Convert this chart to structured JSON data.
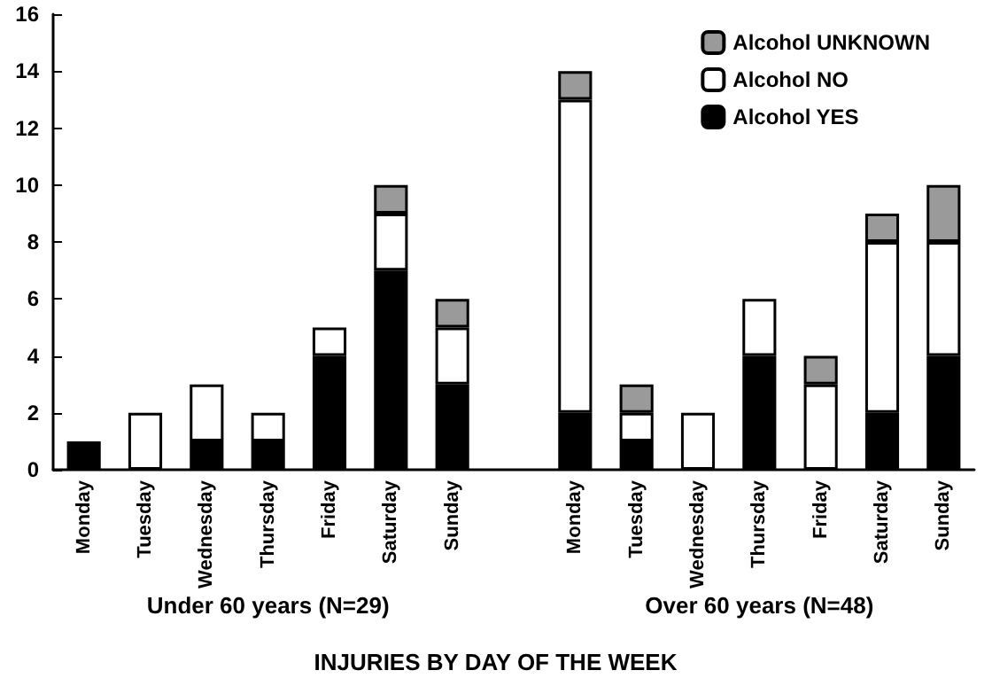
{
  "chart_data": {
    "type": "bar",
    "stacked": true,
    "xlabel": "INJURIES BY DAY OF THE WEEK",
    "categories": [
      "Monday",
      "Tuesday",
      "Wednesday",
      "Thursday",
      "Friday",
      "Saturday",
      "Sunday",
      null,
      "Monday",
      "Tuesday",
      "Wednesday",
      "Thursday",
      "Friday",
      "Saturday",
      "Sunday"
    ],
    "series": [
      {
        "name": "Alcohol YES",
        "color": "#000000",
        "values": [
          1,
          0,
          1,
          1,
          4,
          7,
          3,
          null,
          2,
          1,
          0,
          4,
          0,
          2,
          4
        ]
      },
      {
        "name": "Alcohol NO",
        "color": "#ffffff",
        "values": [
          0,
          2,
          2,
          1,
          1,
          2,
          2,
          null,
          11,
          1,
          2,
          2,
          3,
          6,
          4
        ]
      },
      {
        "name": "Alcohol UNKNOWN",
        "color": "#9a9a9a",
        "values": [
          0,
          0,
          0,
          0,
          0,
          1,
          1,
          null,
          1,
          1,
          0,
          0,
          1,
          1,
          2
        ]
      }
    ],
    "ylim": [
      0,
      16
    ],
    "yticks": [
      0,
      2,
      4,
      6,
      8,
      10,
      12,
      14,
      16
    ],
    "grid": false,
    "legend": "top right",
    "annotations": [
      "Under 60 years (N=29)",
      "Over 60 years (N=48)"
    ]
  }
}
